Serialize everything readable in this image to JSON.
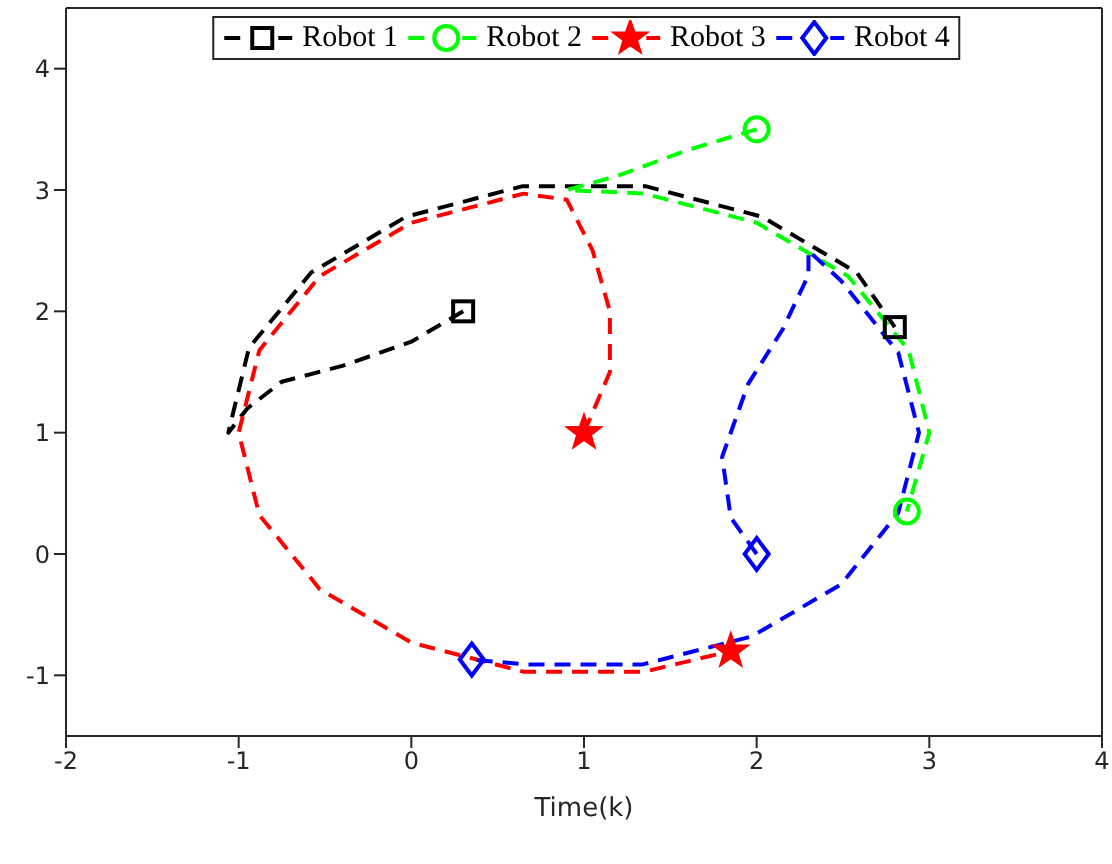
{
  "chart_data": {
    "type": "line",
    "xlabel": "Time(k)",
    "xlim": [
      -2,
      4
    ],
    "ylim": [
      -1.5,
      4.5
    ],
    "xticks": [
      -2,
      -1,
      0,
      1,
      2,
      3,
      4
    ],
    "yticks": [
      -1,
      0,
      1,
      2,
      3,
      4
    ],
    "legend": "top",
    "line_style": "dashed",
    "series": [
      {
        "name": "Robot 1",
        "color": "#000000",
        "x": [
          0.3,
          0,
          -0.4,
          -0.75,
          -0.95,
          -1.06,
          -0.94,
          -0.58,
          -0.03,
          0.64,
          1.36,
          2.03,
          2.58,
          2.8
        ],
        "values": [
          2,
          1.75,
          1.55,
          1.42,
          1.2,
          1,
          1.7,
          2.32,
          2.78,
          3.03,
          3.03,
          2.78,
          2.32,
          1.87
        ]
      },
      {
        "name": "Robot 2",
        "color": "#00ff00",
        "x": [
          2,
          1.6,
          1.2,
          0.9,
          1.35,
          2,
          2.53,
          2.88,
          3,
          2.87
        ],
        "values": [
          3.5,
          3.33,
          3.12,
          3,
          2.97,
          2.73,
          2.29,
          1.68,
          1,
          0.35
        ]
      },
      {
        "name": "Robot 3",
        "color": "#ff0000",
        "x": [
          1,
          1.15,
          1.15,
          1.05,
          0.9,
          0.65,
          0,
          -0.53,
          -0.88,
          -1,
          -0.88,
          -0.53,
          0,
          0.65,
          1.35,
          1.85
        ],
        "values": [
          1,
          1.5,
          2,
          2.5,
          2.92,
          2.97,
          2.73,
          2.29,
          1.68,
          1,
          0.32,
          -0.29,
          -0.73,
          -0.97,
          -0.97,
          -0.8
        ]
      },
      {
        "name": "Robot 4",
        "color": "#0000ff",
        "x": [
          2,
          1.85,
          1.8,
          1.95,
          2.15,
          2.3,
          2.3,
          2.49,
          2.82,
          2.94,
          2.82,
          2.49,
          1.97,
          1.34,
          0.66,
          0.35
        ],
        "values": [
          0,
          0.3,
          0.8,
          1.4,
          1.85,
          2.3,
          2.5,
          2.25,
          1.66,
          1,
          0.34,
          -0.25,
          -0.68,
          -0.91,
          -0.91,
          -0.87
        ]
      },
      {
        "type": "scatter",
        "color": "#000000",
        "marker": "square",
        "x": [
          0.3,
          2.8
        ],
        "values": [
          2,
          1.87
        ]
      },
      {
        "type": "scatter",
        "color": "#00ff00",
        "marker": "circle",
        "x": [
          2,
          2.87
        ],
        "values": [
          3.5,
          0.35
        ]
      },
      {
        "type": "scatter",
        "color": "#ff0000",
        "marker": "star",
        "x": [
          1,
          1.85
        ],
        "values": [
          1,
          -0.8
        ]
      },
      {
        "type": "scatter",
        "color": "#0000ff",
        "marker": "diamond",
        "x": [
          2,
          0.35
        ],
        "values": [
          0,
          -0.87
        ]
      }
    ]
  }
}
